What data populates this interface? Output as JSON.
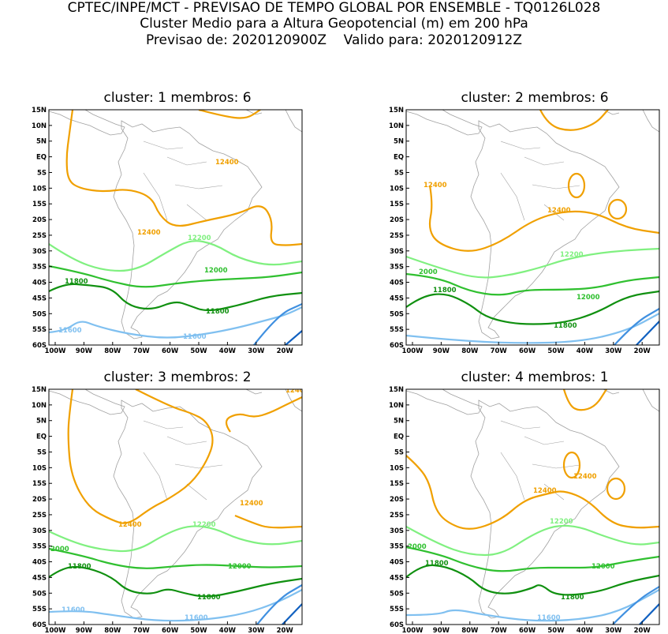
{
  "header": {
    "line1": "CPTEC/INPE/MCT - PREVISAO DE TEMPO GLOBAL POR ENSEMBLE - TQ0126L028",
    "line2": "Cluster Medio para a Altura Geopotencial (m) em 200 hPa",
    "line3": "Previsao de: 2020120900Z    Valido para: 2020120912Z"
  },
  "panels": [
    {
      "title": "cluster: 1   membros: 6"
    },
    {
      "title": "cluster: 2   membros: 6"
    },
    {
      "title": "cluster: 3   membros: 2"
    },
    {
      "title": "cluster: 4   membros: 1"
    }
  ],
  "lat_ticks": [
    "15N",
    "10N",
    "5N",
    "EQ",
    "5S",
    "10S",
    "15S",
    "20S",
    "25S",
    "30S",
    "35S",
    "40S",
    "45S",
    "50S",
    "55S",
    "60S"
  ],
  "lon_ticks": [
    "100W",
    "90W",
    "80W",
    "70W",
    "60W",
    "50W",
    "40W",
    "30W",
    "20W"
  ],
  "contour_labels": {
    "p1": [
      "12400",
      "12400",
      "12200",
      "12000",
      "11800",
      "11800",
      "11600",
      "11600"
    ],
    "p2": [
      "12400",
      "12400",
      "12200",
      "2000",
      "12000",
      "11800",
      "11800"
    ],
    "p3": [
      "12400",
      "12400",
      "12400",
      "12200",
      "2000",
      "12000",
      "11800",
      "11800",
      "11600",
      "11600"
    ],
    "p4": [
      "12400",
      "12400",
      "12200",
      "2000",
      "12000",
      "11800",
      "11800",
      "11600"
    ]
  },
  "colors": {
    "c12400": "#f0a000",
    "c12200": "#80f080",
    "c12000": "#30c030",
    "c11800": "#109010",
    "c11600": "#80c0f0",
    "c11400": "#4090e0",
    "c11200": "#1060c0",
    "coast": "#a0a0a0"
  }
}
